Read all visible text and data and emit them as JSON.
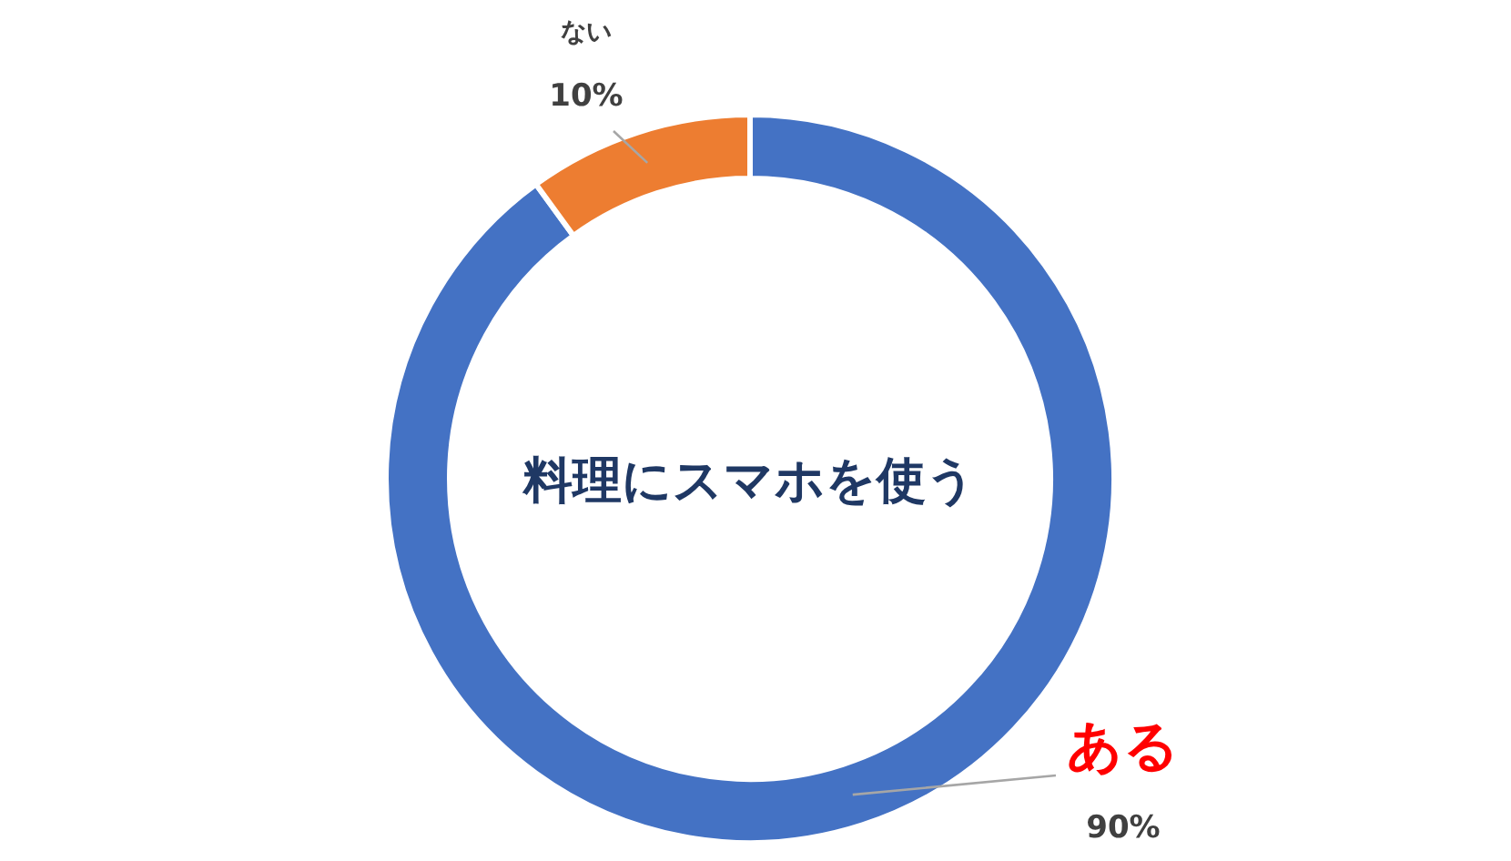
{
  "chart_data": {
    "type": "donut",
    "title": "料理にスマホを使う",
    "categories": [
      "ある",
      "ない"
    ],
    "values": [
      90,
      10
    ],
    "value_labels": [
      "90%",
      "10%"
    ],
    "colors": [
      "#4472c4",
      "#ed7d31"
    ]
  }
}
